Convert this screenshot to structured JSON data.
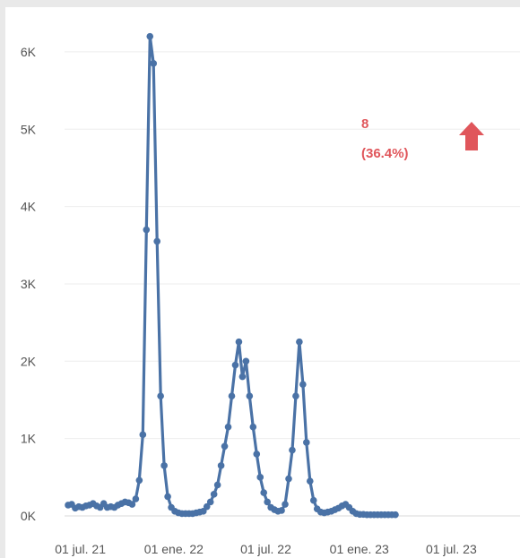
{
  "chart_data": {
    "type": "line",
    "title": "",
    "xlabel": "",
    "ylabel": "",
    "x_tick_labels": [
      "01 jul. 21",
      "01 ene. 22",
      "01 jul. 22",
      "01 ene. 23",
      "01 jul. 23"
    ],
    "x_ticks": [
      "2021-07-01",
      "2022-01-01",
      "2022-07-01",
      "2023-01-01",
      "2023-07-01"
    ],
    "xlim": [
      "2021-06-07",
      "2023-10-16"
    ],
    "y_tick_labels": [
      "0K",
      "1K",
      "2K",
      "3K",
      "4K",
      "5K",
      "6K"
    ],
    "y_ticks": [
      0,
      1000,
      2000,
      3000,
      4000,
      5000,
      6000
    ],
    "ylim": [
      0,
      6300
    ],
    "grid": true,
    "series_color": "#4a72a6",
    "series": [
      {
        "points": [
          [
            "2021-06-07",
            140
          ],
          [
            "2021-06-14",
            150
          ],
          [
            "2021-06-21",
            100
          ],
          [
            "2021-06-28",
            120
          ],
          [
            "2021-07-05",
            110
          ],
          [
            "2021-07-12",
            130
          ],
          [
            "2021-07-19",
            140
          ],
          [
            "2021-07-26",
            160
          ],
          [
            "2021-08-02",
            130
          ],
          [
            "2021-08-09",
            110
          ],
          [
            "2021-08-16",
            160
          ],
          [
            "2021-08-23",
            110
          ],
          [
            "2021-08-30",
            120
          ],
          [
            "2021-09-06",
            110
          ],
          [
            "2021-09-13",
            140
          ],
          [
            "2021-09-20",
            160
          ],
          [
            "2021-09-27",
            180
          ],
          [
            "2021-10-04",
            170
          ],
          [
            "2021-10-11",
            150
          ],
          [
            "2021-10-18",
            220
          ],
          [
            "2021-10-25",
            460
          ],
          [
            "2021-11-01",
            1050
          ],
          [
            "2021-11-08",
            3700
          ],
          [
            "2021-11-15",
            6200
          ],
          [
            "2021-11-22",
            5850
          ],
          [
            "2021-11-29",
            3550
          ],
          [
            "2021-12-06",
            1550
          ],
          [
            "2021-12-13",
            650
          ],
          [
            "2021-12-20",
            250
          ],
          [
            "2021-12-27",
            110
          ],
          [
            "2022-01-03",
            60
          ],
          [
            "2022-01-10",
            40
          ],
          [
            "2022-01-17",
            30
          ],
          [
            "2022-01-24",
            30
          ],
          [
            "2022-01-31",
            30
          ],
          [
            "2022-02-07",
            30
          ],
          [
            "2022-02-14",
            40
          ],
          [
            "2022-02-21",
            50
          ],
          [
            "2022-02-28",
            60
          ],
          [
            "2022-03-07",
            120
          ],
          [
            "2022-03-14",
            180
          ],
          [
            "2022-03-21",
            280
          ],
          [
            "2022-03-28",
            400
          ],
          [
            "2022-04-04",
            650
          ],
          [
            "2022-04-11",
            900
          ],
          [
            "2022-04-18",
            1150
          ],
          [
            "2022-04-25",
            1550
          ],
          [
            "2022-05-02",
            1950
          ],
          [
            "2022-05-09",
            2250
          ],
          [
            "2022-05-16",
            1800
          ],
          [
            "2022-05-23",
            2000
          ],
          [
            "2022-05-30",
            1550
          ],
          [
            "2022-06-06",
            1150
          ],
          [
            "2022-06-13",
            800
          ],
          [
            "2022-06-20",
            500
          ],
          [
            "2022-06-27",
            300
          ],
          [
            "2022-07-04",
            180
          ],
          [
            "2022-07-11",
            110
          ],
          [
            "2022-07-18",
            80
          ],
          [
            "2022-07-25",
            60
          ],
          [
            "2022-08-01",
            70
          ],
          [
            "2022-08-08",
            150
          ],
          [
            "2022-08-15",
            480
          ],
          [
            "2022-08-22",
            850
          ],
          [
            "2022-08-29",
            1550
          ],
          [
            "2022-09-05",
            2250
          ],
          [
            "2022-09-12",
            1700
          ],
          [
            "2022-09-19",
            950
          ],
          [
            "2022-09-26",
            450
          ],
          [
            "2022-10-03",
            200
          ],
          [
            "2022-10-10",
            90
          ],
          [
            "2022-10-17",
            50
          ],
          [
            "2022-10-24",
            40
          ],
          [
            "2022-10-31",
            50
          ],
          [
            "2022-11-07",
            60
          ],
          [
            "2022-11-14",
            80
          ],
          [
            "2022-11-21",
            100
          ],
          [
            "2022-11-28",
            130
          ],
          [
            "2022-12-05",
            150
          ],
          [
            "2022-12-12",
            110
          ],
          [
            "2022-12-19",
            60
          ],
          [
            "2022-12-26",
            30
          ],
          [
            "2023-01-02",
            20
          ],
          [
            "2023-01-09",
            20
          ],
          [
            "2023-01-16",
            15
          ],
          [
            "2023-01-23",
            15
          ],
          [
            "2023-01-30",
            15
          ],
          [
            "2023-02-06",
            15
          ],
          [
            "2023-02-13",
            15
          ],
          [
            "2023-02-20",
            15
          ],
          [
            "2023-02-27",
            15
          ],
          [
            "2023-03-06",
            15
          ],
          [
            "2023-03-13",
            15
          ]
        ]
      }
    ],
    "annotation": {
      "value": "8",
      "percent": "(36.4%)",
      "trend": "up",
      "color": "#e0565b"
    }
  }
}
